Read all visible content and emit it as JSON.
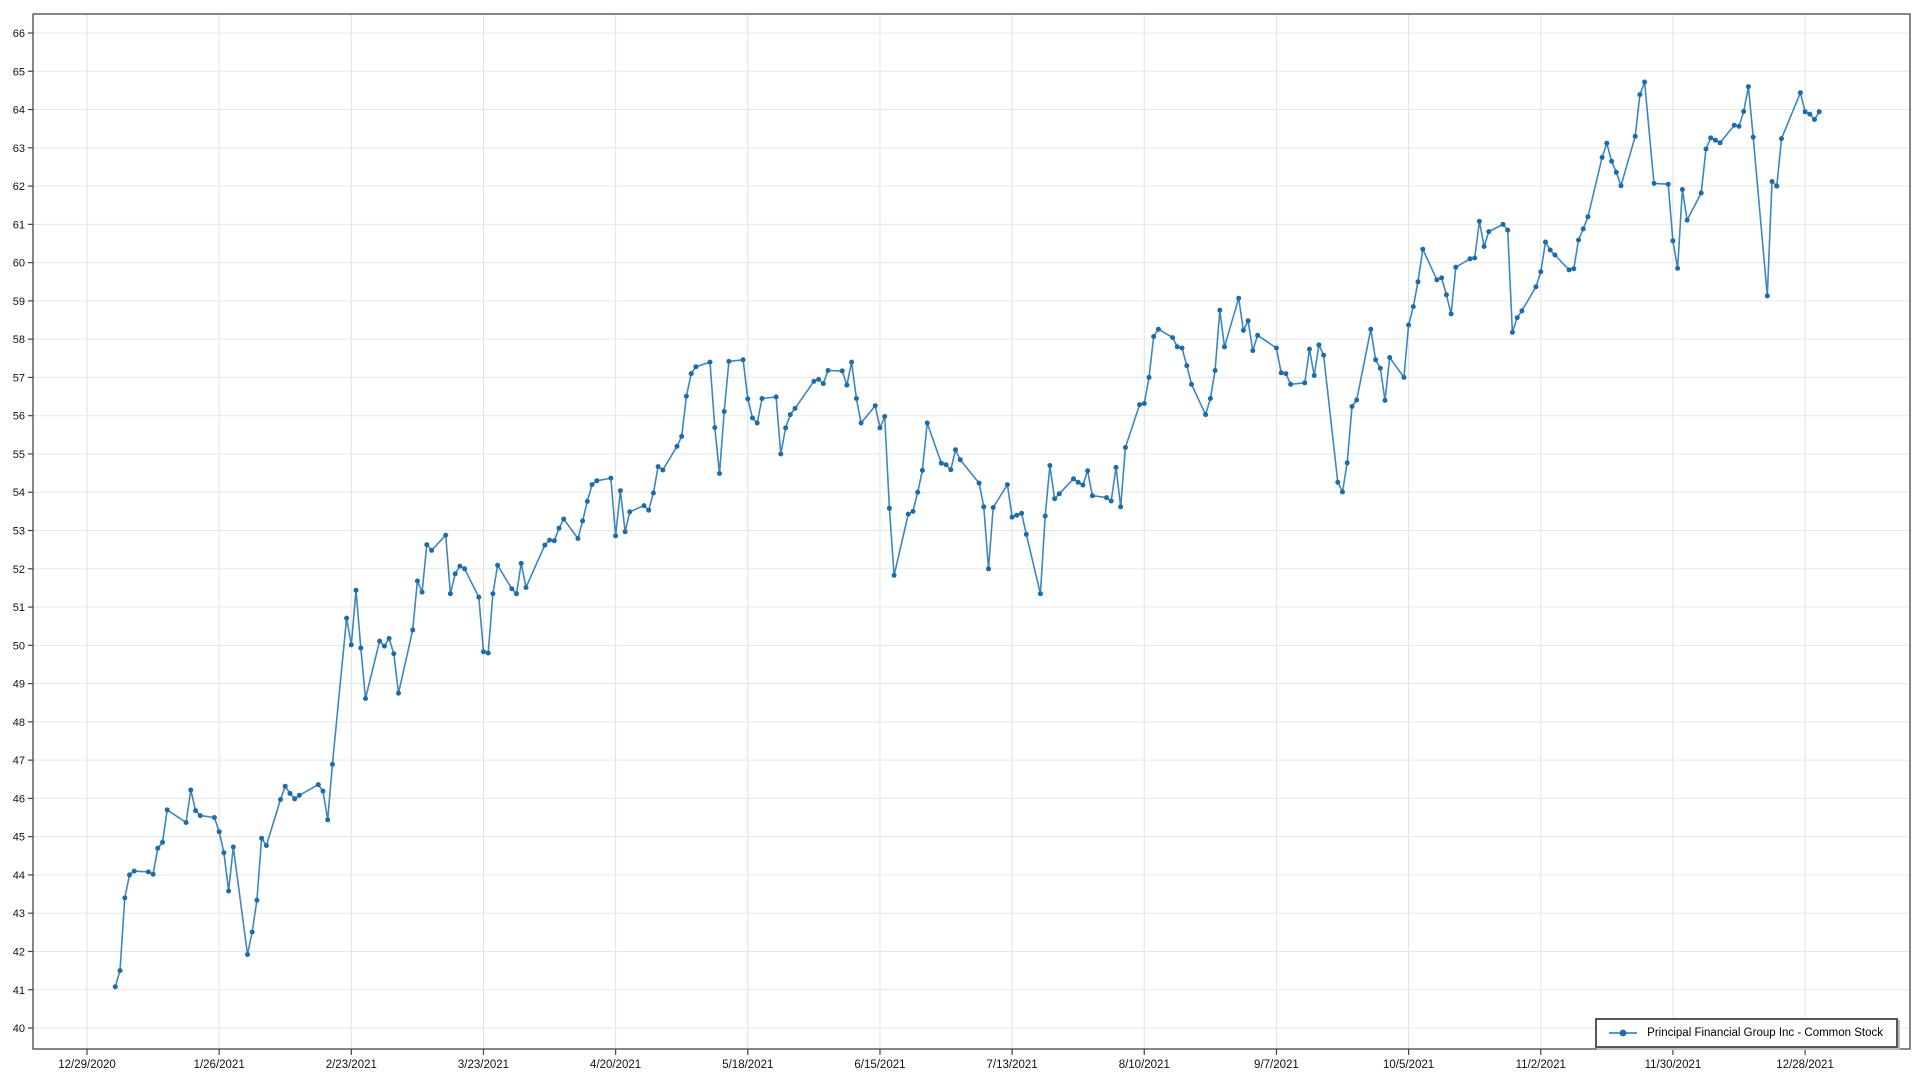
{
  "window": {
    "background": "#ffffff"
  },
  "legend": {
    "position": "bottom-right"
  },
  "chart_data": {
    "type": "line",
    "title": "",
    "xlabel": "",
    "ylabel": "",
    "grid": true,
    "legend_position": "bottom-right-inside",
    "colors": {
      "line": "#3F86C0",
      "marker": "#1E6BA8",
      "legend_icon_line": "#5C98C8",
      "grid_horizontal": "#e7e7e7",
      "grid_vertical": "#e2e2e2",
      "axis": "#444444",
      "tick_text": "#111111"
    },
    "x_axis": {
      "tick_labels": [
        "12/29/2020",
        "1/26/2021",
        "2/23/2021",
        "3/23/2021",
        "4/20/2021",
        "5/18/2021",
        "6/15/2021",
        "7/13/2021",
        "8/10/2021",
        "9/7/2021",
        "10/5/2021",
        "11/2/2021",
        "11/30/2021",
        "12/28/2021"
      ],
      "tick_interval_days": 28,
      "start_label_date": "12/29/2020"
    },
    "y_axis": {
      "min_label": 40,
      "max_label": 66,
      "step": 1,
      "ylim": [
        39.45,
        66.5
      ]
    },
    "series": [
      {
        "name": "Principal Financial Group Inc - Common Stock",
        "frequency": "daily (NYSE trading days of 2021)",
        "first_point_date": "1/4/2021",
        "last_point_date": "12/31/2021",
        "values": [
          41.08,
          41.5,
          43.4,
          44.0,
          44.1,
          44.08,
          44.02,
          44.7,
          44.85,
          45.7,
          45.37,
          46.22,
          45.68,
          45.55,
          45.5,
          45.13,
          44.58,
          43.58,
          44.73,
          41.92,
          42.51,
          43.34,
          44.96,
          44.77,
          45.97,
          46.32,
          46.13,
          45.99,
          46.08,
          46.36,
          46.19,
          45.44,
          46.89,
          50.71,
          50.01,
          51.44,
          49.93,
          48.61,
          50.11,
          49.98,
          50.18,
          49.78,
          48.75,
          50.4,
          51.68,
          51.39,
          52.63,
          52.48,
          52.88,
          51.35,
          51.87,
          52.07,
          52.0,
          51.26,
          49.83,
          49.8,
          51.35,
          52.09,
          51.48,
          51.35,
          52.14,
          51.51,
          52.62,
          52.75,
          52.73,
          53.06,
          53.3,
          52.79,
          53.25,
          53.76,
          54.2,
          54.3,
          54.37,
          52.86,
          54.04,
          52.97,
          53.49,
          53.65,
          53.53,
          53.98,
          54.67,
          54.58,
          55.2,
          55.46,
          56.51,
          57.1,
          57.28,
          57.4,
          55.69,
          54.49,
          56.11,
          57.42,
          57.46,
          56.44,
          55.94,
          55.81,
          56.45,
          56.49,
          55.0,
          55.68,
          56.03,
          56.19,
          56.9,
          56.95,
          56.84,
          57.18,
          57.17,
          56.8,
          57.4,
          56.45,
          55.81,
          56.26,
          55.68,
          55.98,
          53.58,
          51.83,
          53.43,
          53.5,
          54.0,
          54.57,
          55.81,
          54.76,
          54.72,
          54.59,
          55.11,
          54.85,
          54.24,
          53.62,
          52.0,
          53.6,
          54.2,
          53.35,
          53.4,
          53.45,
          52.9,
          51.35,
          53.38,
          54.7,
          53.83,
          53.96,
          54.35,
          54.26,
          54.19,
          54.56,
          53.91,
          53.86,
          53.77,
          54.65,
          53.62,
          55.17,
          56.29,
          56.32,
          57.0,
          58.07,
          58.26,
          58.04,
          57.8,
          57.77,
          57.31,
          56.82,
          56.03,
          56.45,
          57.18,
          58.76,
          57.8,
          59.07,
          58.23,
          58.48,
          57.7,
          58.1,
          57.77,
          57.12,
          57.1,
          56.82,
          56.86,
          57.74,
          57.05,
          57.85,
          57.58,
          54.26,
          54.01,
          54.77,
          56.24,
          56.41,
          58.26,
          57.46,
          57.24,
          56.4,
          57.52,
          57.0,
          58.37,
          58.85,
          59.5,
          60.35,
          59.55,
          59.6,
          59.16,
          58.66,
          59.88,
          60.1,
          60.12,
          61.08,
          60.42,
          60.81,
          61.0,
          60.85,
          58.18,
          58.56,
          58.74,
          59.37,
          59.76,
          60.54,
          60.33,
          60.2,
          59.81,
          59.84,
          60.59,
          60.88,
          61.2,
          62.75,
          63.12,
          62.65,
          62.36,
          62.01,
          63.3,
          64.39,
          64.72,
          62.07,
          62.05,
          60.57,
          59.85,
          61.91,
          61.11,
          61.82,
          62.97,
          63.26,
          63.2,
          63.13,
          63.59,
          63.56,
          63.95,
          64.6,
          63.28,
          59.13,
          62.12,
          62.0,
          63.24,
          64.44,
          63.94,
          63.88,
          63.74,
          63.94
        ]
      }
    ]
  }
}
